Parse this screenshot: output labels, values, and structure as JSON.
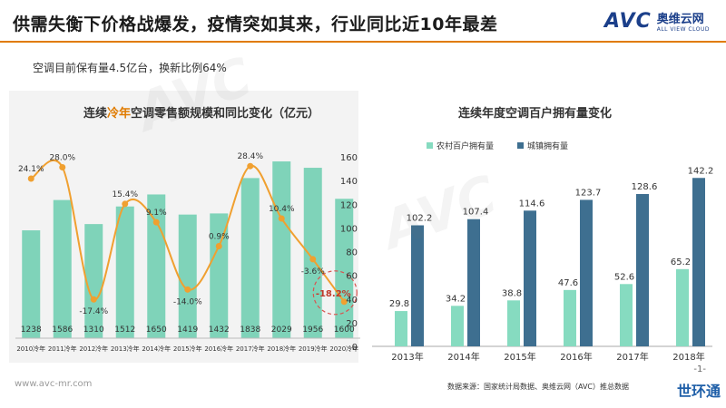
{
  "header": {
    "title_prefix": "供需失衡下价格战爆发，疫情突如其来，行业同比近",
    "title_num": "10",
    "title_suffix": "年最差",
    "logo_text": "AVC",
    "logo_cn": "奥维云网",
    "logo_en": "ALL VIEW CLOUD"
  },
  "subtitle": "空调目前保有量4.5亿台，换新比例64%",
  "footer": {
    "url": "www.avc-mr.com",
    "source": "数据来源：国家统计局数据、奥维云网（AVC）推总数据",
    "page": "-1-",
    "corner_logo": "世环通"
  },
  "colors": {
    "bar_left": "#7fd3b9",
    "line": "#f0a030",
    "rural": "#86dbc0",
    "urban": "#3e6f90",
    "accent": "#e07b00"
  },
  "chart_data": [
    {
      "type": "bar",
      "title_prefix": "连续",
      "title_highlight": "冷年",
      "title_suffix": "空调零售额规模和同比变化（亿元）",
      "categories": [
        "2010冷年",
        "2011冷年",
        "2012冷年",
        "2013冷年",
        "2014冷年",
        "2015冷年",
        "2016冷年",
        "2017冷年",
        "2018冷年",
        "2019冷年",
        "2020冷年"
      ],
      "series": [
        {
          "values": [
            1238,
            1586,
            1310,
            1512,
            1650,
            1419,
            1432,
            1838,
            2029,
            1956,
            1600
          ],
          "labels": [
            "1238",
            "1586",
            "1310",
            "1512",
            "1650",
            "1419",
            "1432",
            "1838",
            "2029",
            "1956",
            "1600"
          ]
        },
        {
          "type": "line",
          "values": [
            24.1,
            28.0,
            -17.4,
            15.4,
            9.1,
            -14.0,
            0.9,
            28.4,
            10.4,
            -3.6,
            -18.2
          ],
          "labels": [
            "24.1%",
            "28.0%",
            "-17.4%",
            "15.4%",
            "9.1%",
            "-14.0%",
            "0.9%",
            "28.4%",
            "10.4%",
            "-3.6%",
            "-18.2%"
          ]
        }
      ],
      "ylim": [
        0,
        2300
      ],
      "y2lim": [
        -22,
        35
      ],
      "highlight_last": true
    },
    {
      "type": "bar",
      "title": "连续年度空调百户拥有量变化",
      "categories": [
        "2013年",
        "2014年",
        "2015年",
        "2016年",
        "2017年",
        "2018年"
      ],
      "series": [
        {
          "name": "农村百户拥有量",
          "values": [
            29.8,
            34.2,
            38.8,
            47.6,
            52.6,
            65.2
          ],
          "labels": [
            "29.8",
            "34.2",
            "38.8",
            "47.6",
            "52.6",
            "65.2"
          ]
        },
        {
          "name": "城镇拥有量",
          "values": [
            102.2,
            107.4,
            114.6,
            123.7,
            128.6,
            142.2
          ],
          "labels": [
            "102.2",
            "107.4",
            "114.6",
            "123.7",
            "128.6",
            "142.2"
          ]
        }
      ],
      "yticks": [
        "0",
        "20",
        "40",
        "60",
        "80",
        "100",
        "120",
        "140",
        "160"
      ],
      "ylim": [
        0,
        160
      ],
      "legend": "top-left",
      "grid": false
    }
  ]
}
